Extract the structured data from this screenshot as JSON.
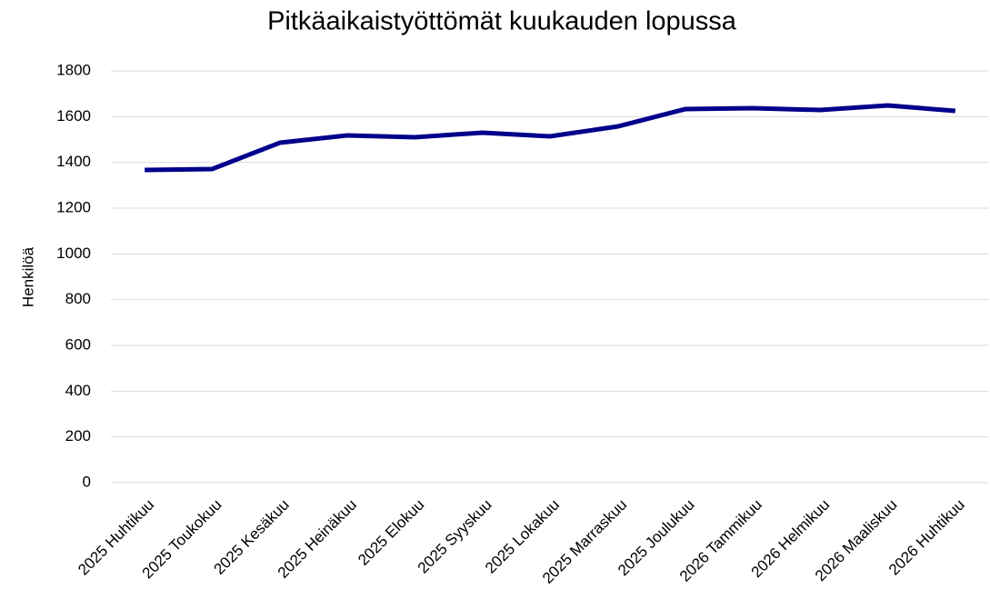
{
  "chart_data": {
    "type": "line",
    "title": "Pitkäaikaistyöttömät kuukauden lopussa",
    "y_label": "Henkilöä",
    "categories": [
      "2025 Huhtikuu",
      "2025 Toukokuu",
      "2025 Kesäkuu",
      "2025 Heinäkuu",
      "2025 Elokuu",
      "2025 Syyskuu",
      "2025 Lokakuu",
      "2025 Marraskuu",
      "2025 Joulukuu",
      "2026 Tammikuu",
      "2026 Helmikuu",
      "2026 Maaliskuu",
      "2026 Huhtikuu"
    ],
    "values": [
      1367,
      1371,
      1486,
      1518,
      1510,
      1530,
      1514,
      1557,
      1633,
      1637,
      1629,
      1649,
      1625
    ],
    "color": "#00008b",
    "ylim": [
      0,
      1800
    ],
    "yticks": [
      0,
      200,
      400,
      600,
      800,
      1000,
      1200,
      1400,
      1600,
      1800
    ],
    "grid": true
  }
}
